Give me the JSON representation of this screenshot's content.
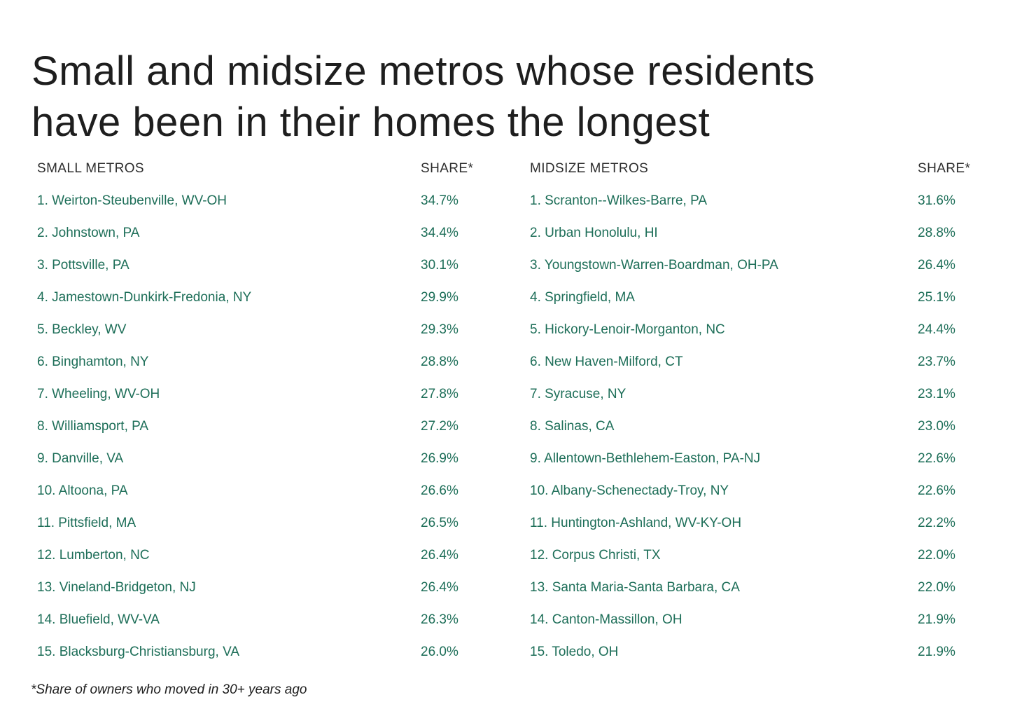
{
  "title": {
    "line1": "Small and midsize metros whose residents",
    "line2": "have been in their homes the longest"
  },
  "footnote": "*Share of owners who moved in 30+ years ago",
  "colors": {
    "accent_green": "#1d6e58",
    "heading_text": "#2d2d2d",
    "title_text": "#1e1e1e",
    "background": "#ffffff"
  },
  "chart_data": {
    "type": "table",
    "title": "Small and midsize metros whose residents have been in their homes the longest",
    "footnote": "*Share of owners who moved in 30+ years ago",
    "layout": "two side-by-side ranked tables, rank embedded in label, shares left-aligned in second column",
    "tables": [
      {
        "name_header": "SMALL METROS",
        "share_header": "SHARE*",
        "rows": [
          {
            "label": "1. Weirton-Steubenville, WV-OH",
            "value": "34.7%"
          },
          {
            "label": "2. Johnstown, PA",
            "value": "34.4%"
          },
          {
            "label": "3. Pottsville, PA",
            "value": "30.1%"
          },
          {
            "label": "4. Jamestown-Dunkirk-Fredonia, NY",
            "value": "29.9%"
          },
          {
            "label": "5. Beckley, WV",
            "value": "29.3%"
          },
          {
            "label": "6. Binghamton, NY",
            "value": "28.8%"
          },
          {
            "label": "7. Wheeling, WV-OH",
            "value": "27.8%"
          },
          {
            "label": "8. Williamsport, PA",
            "value": "27.2%"
          },
          {
            "label": "9. Danville, VA",
            "value": "26.9%"
          },
          {
            "label": "10. Altoona, PA",
            "value": "26.6%"
          },
          {
            "label": "11. Pittsfield, MA",
            "value": "26.5%"
          },
          {
            "label": "12. Lumberton, NC",
            "value": "26.4%"
          },
          {
            "label": "13. Vineland-Bridgeton, NJ",
            "value": "26.4%"
          },
          {
            "label": "14. Bluefield, WV-VA",
            "value": "26.3%"
          },
          {
            "label": "15. Blacksburg-Christiansburg, VA",
            "value": "26.0%"
          }
        ]
      },
      {
        "name_header": "MIDSIZE METROS",
        "share_header": "SHARE*",
        "rows": [
          {
            "label": "1. Scranton--Wilkes-Barre, PA",
            "value": "31.6%"
          },
          {
            "label": "2. Urban Honolulu, HI",
            "value": "28.8%"
          },
          {
            "label": "3. Youngstown-Warren-Boardman, OH-PA",
            "value": "26.4%"
          },
          {
            "label": "4. Springfield, MA",
            "value": "25.1%"
          },
          {
            "label": "5. Hickory-Lenoir-Morganton, NC",
            "value": "24.4%"
          },
          {
            "label": "6. New Haven-Milford, CT",
            "value": "23.7%"
          },
          {
            "label": "7. Syracuse, NY",
            "value": "23.1%"
          },
          {
            "label": "8. Salinas, CA",
            "value": "23.0%"
          },
          {
            "label": "9. Allentown-Bethlehem-Easton, PA-NJ",
            "value": "22.6%"
          },
          {
            "label": "10. Albany-Schenectady-Troy, NY",
            "value": "22.6%"
          },
          {
            "label": "11. Huntington-Ashland, WV-KY-OH",
            "value": "22.2%"
          },
          {
            "label": "12. Corpus Christi, TX",
            "value": "22.0%"
          },
          {
            "label": "13. Santa Maria-Santa Barbara, CA",
            "value": "22.0%"
          },
          {
            "label": "14. Canton-Massillon, OH",
            "value": "21.9%"
          },
          {
            "label": "15. Toledo, OH",
            "value": "21.9%"
          }
        ]
      }
    ]
  }
}
